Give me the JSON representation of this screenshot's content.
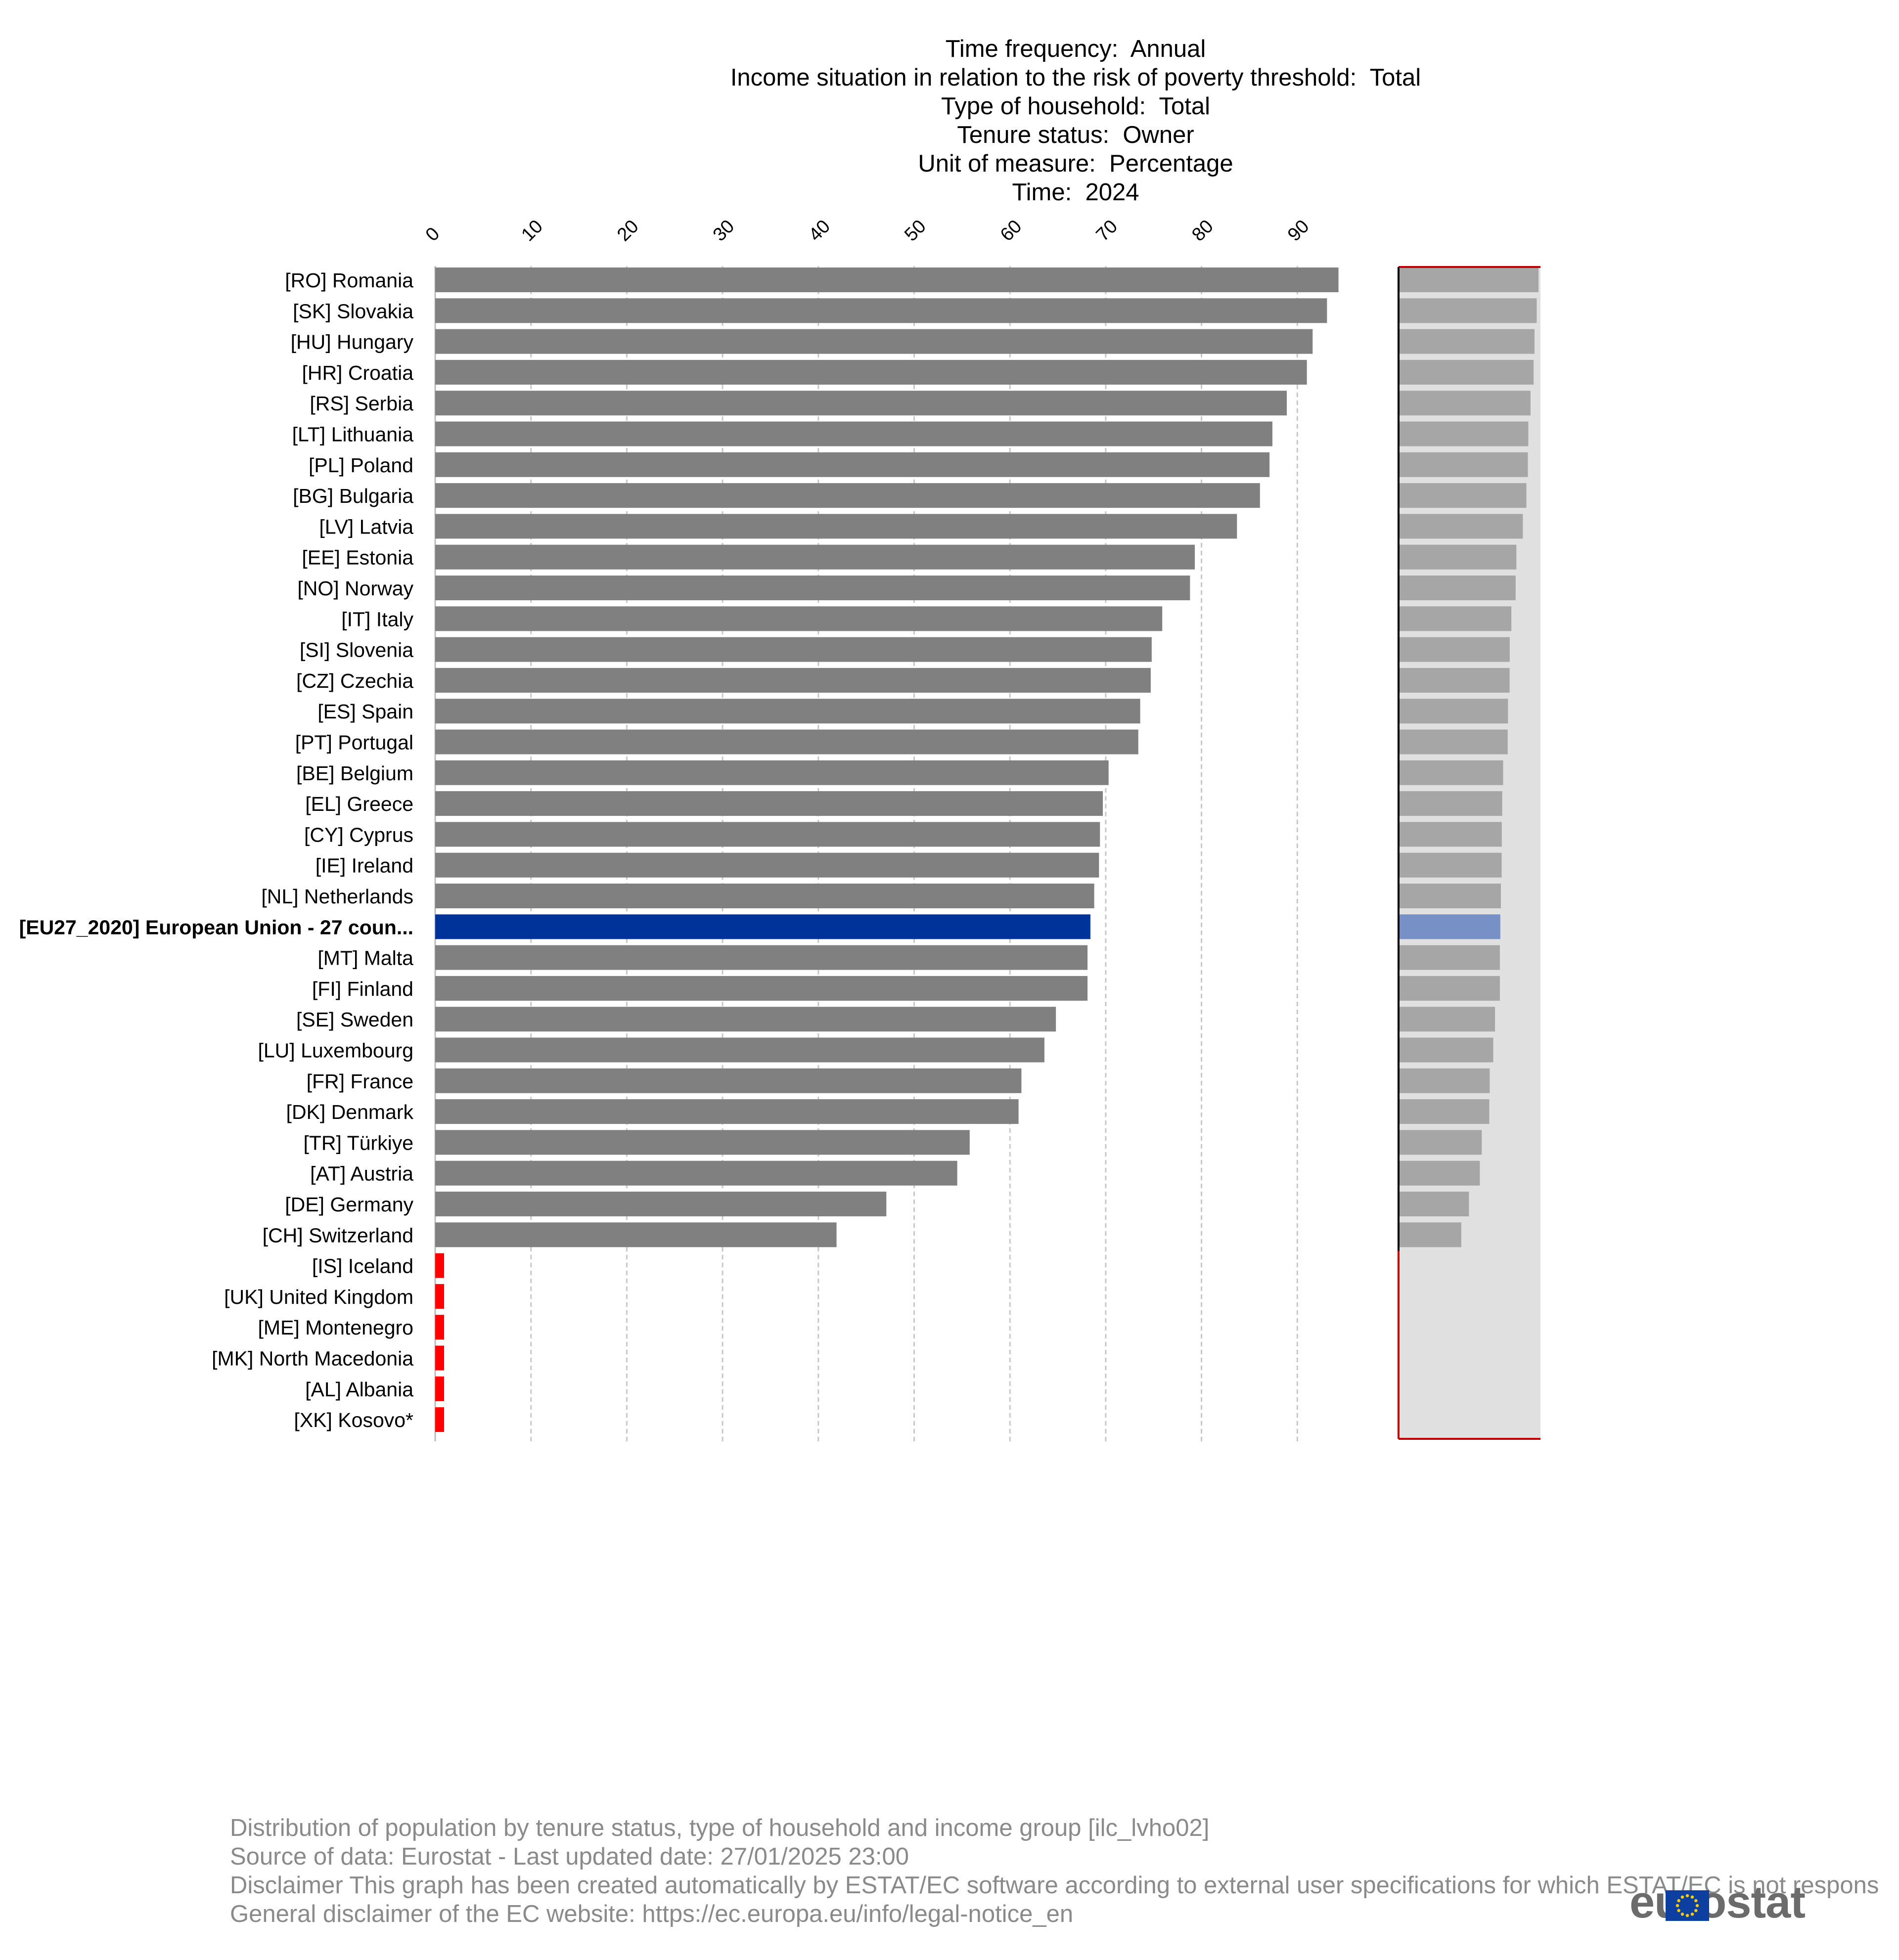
{
  "header": {
    "lines": [
      {
        "label": "Time frequency:",
        "value": "Annual"
      },
      {
        "label": "Income situation in relation to the risk of poverty threshold:",
        "value": "Total"
      },
      {
        "label": "Type of household:",
        "value": "Total"
      },
      {
        "label": "Tenure status:",
        "value": "Owner"
      },
      {
        "label": "Unit of measure:",
        "value": "Percentage"
      },
      {
        "label": "Time:",
        "value": "2024"
      }
    ]
  },
  "chart_data": {
    "type": "bar",
    "orientation": "horizontal",
    "title": "",
    "xlabel": "",
    "ylabel": "",
    "xlim": [
      0,
      100
    ],
    "xticks": [
      "0",
      "10",
      "20",
      "30",
      "40",
      "50",
      "60",
      "70",
      "80",
      "90"
    ],
    "grid": true,
    "categories": [
      "[RO] Romania",
      "[SK] Slovakia",
      "[HU] Hungary",
      "[HR] Croatia",
      "[RS] Serbia",
      "[LT] Lithuania",
      "[PL] Poland",
      "[BG] Bulgaria",
      "[LV] Latvia",
      "[EE] Estonia",
      "[NO] Norway",
      "[IT] Italy",
      "[SI] Slovenia",
      "[CZ] Czechia",
      "[ES] Spain",
      "[PT] Portugal",
      "[BE] Belgium",
      "[EL] Greece",
      "[CY] Cyprus",
      "[IE] Ireland",
      "[NL] Netherlands",
      "[EU27_2020] European Union - 27 coun...",
      "[MT] Malta",
      "[FI] Finland",
      "[SE] Sweden",
      "[LU] Luxembourg",
      "[FR] France",
      "[DK] Denmark",
      "[TR] Türkiye",
      "[AT] Austria",
      "[DE] Germany",
      "[CH] Switzerland",
      "[IS] Iceland",
      "[UK] United Kingdom",
      "[ME] Montenegro",
      "[MK] North Macedonia",
      "[AL] Albania",
      "[XK] Kosovo*"
    ],
    "values": [
      94.3,
      93.1,
      91.6,
      91.0,
      88.9,
      87.4,
      87.1,
      86.1,
      83.7,
      79.3,
      78.8,
      75.9,
      74.8,
      74.7,
      73.6,
      73.4,
      70.3,
      69.7,
      69.4,
      69.3,
      68.8,
      68.4,
      68.1,
      68.1,
      64.8,
      63.6,
      61.2,
      60.9,
      55.8,
      54.5,
      47.1,
      41.9,
      null,
      null,
      null,
      null,
      null,
      null
    ],
    "highlight": "[EU27_2020] European Union - 27 coun...",
    "missing_marker_color": "#ff0000",
    "colors": {
      "bar": "#808080",
      "highlight_bar": "#003399",
      "overview_bar": "#a6a6a6",
      "overview_highlight": "#7791c6",
      "overview_background": "#e0e0e0",
      "grid": "#c8c8c8",
      "axis": "#000000",
      "overview_border": "#c00000"
    }
  },
  "footer": {
    "lines": [
      "Distribution of population by tenure status, type of household and income group [ilc_lvho02]",
      "Source of data: Eurostat - Last updated date: 27/01/2025 23:00",
      "Disclaimer This graph has been created automatically by ESTAT/EC software according to external user specifications for which ESTAT/EC is not respons",
      "General disclaimer of the EC website: https://ec.europa.eu/info/legal-notice_en"
    ]
  },
  "logo": {
    "text": "eurostat",
    "icon": "eu-flag-icon"
  }
}
